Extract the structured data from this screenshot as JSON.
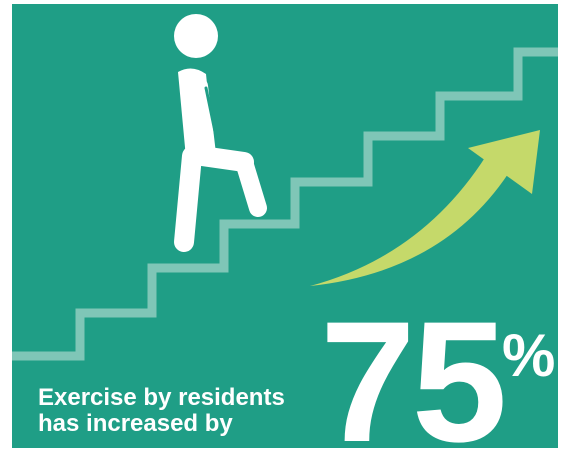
{
  "infographic": {
    "caption_line1": "Exercise by residents",
    "caption_line2": "has increased by",
    "value": "75",
    "unit": "%",
    "colors": {
      "background": "#1f9e86",
      "stairs": "#7fc6b7",
      "arrow": "#c5d96a",
      "figure": "#ffffff",
      "text": "#ffffff"
    },
    "icons": [
      "walking-person-icon",
      "upward-arrow-icon",
      "staircase-graphic"
    ]
  }
}
